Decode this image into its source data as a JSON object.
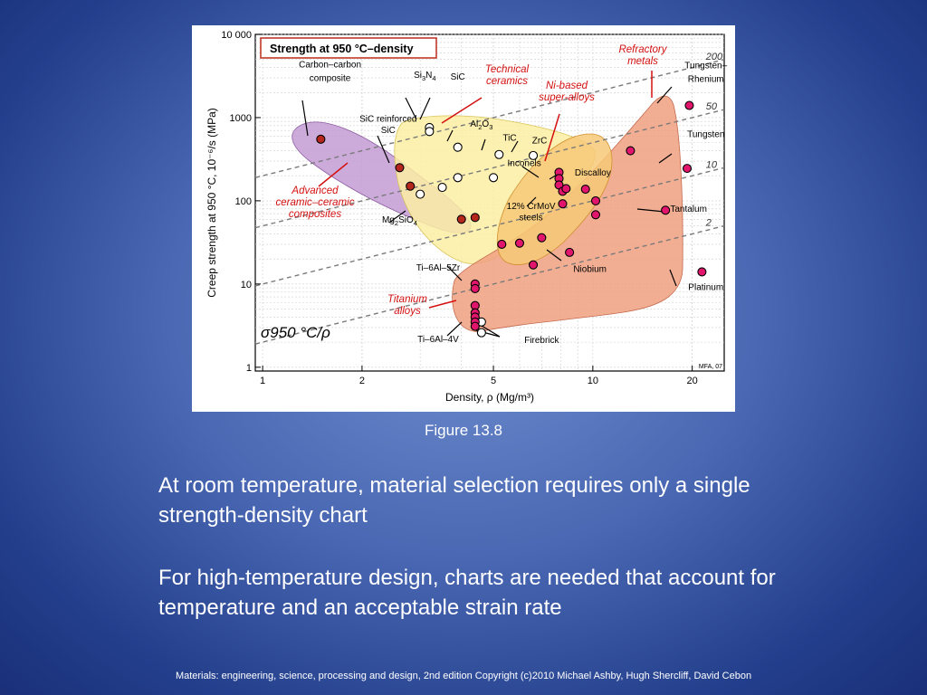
{
  "caption": "Figure 13.8",
  "paragraph1": "At room temperature, material selection requires only a single strength-density chart",
  "paragraph2": "For high-temperature design, charts are needed that account for temperature and an acceptable strain rate",
  "footer": "Materials: engineering, science, processing and design, 2nd edition Copyright (c)2010 Michael Ashby, Hugh Shercliff, David Cebon",
  "chart_data": {
    "type": "scatter",
    "title": "Strength at 950 °C–density",
    "xlabel": "Density, ρ (Mg/m³)",
    "ylabel": "Creep strength at 950 °C, 10⁻⁶/s  (MPa)",
    "x_scale": "log",
    "y_scale": "log",
    "xlim": [
      0.95,
      25
    ],
    "ylim": [
      0.9,
      10000
    ],
    "x_ticks": [
      1,
      2,
      5,
      10,
      20
    ],
    "x_tick_labels": [
      "1",
      "2",
      "5",
      "10",
      "20"
    ],
    "y_ticks": [
      1,
      10,
      100,
      1000,
      10000
    ],
    "y_tick_labels": [
      "1",
      "10",
      "100",
      "1000",
      "10 000"
    ],
    "grid": true,
    "colors": {
      "composite_bubble": "#c39bd3",
      "ceramic_bubble": "#fbeea3",
      "nickel_bubble": "#f7c978",
      "refractory_bubble": "#f0a080",
      "metal_point": "#e0156b",
      "composite_point": "#b5271d",
      "ceramic_point": "#ffffff",
      "class_label": "#d41010"
    },
    "guide_line_label": "σ950 °C/ρ",
    "guide_values": [
      {
        "label": "200",
        "c": 200
      },
      {
        "label": "50",
        "c": 50
      },
      {
        "label": "10",
        "c": 10
      },
      {
        "label": "2",
        "c": 2
      }
    ],
    "class_labels": {
      "refractory": "Refractory metals",
      "technical_ceramics": "Technical ceramics",
      "ni_alloys": "Ni-based super-alloys",
      "composites": "Advanced ceramic–ceramic composites",
      "titanium": "Titanium alloys"
    },
    "mark": "MFA, 07",
    "series": [
      {
        "name": "Technical ceramics",
        "style": "open",
        "points": [
          {
            "x": 3.2,
            "y": 760
          },
          {
            "x": 3.2,
            "y": 680
          },
          {
            "x": 3.9,
            "y": 440
          },
          {
            "x": 3.9,
            "y": 190
          },
          {
            "x": 5.0,
            "y": 190
          },
          {
            "x": 5.2,
            "y": 360
          },
          {
            "x": 6.6,
            "y": 350
          },
          {
            "x": 3.0,
            "y": 120
          },
          {
            "x": 3.5,
            "y": 145
          },
          {
            "x": 4.6,
            "y": 3.5
          },
          {
            "x": 4.6,
            "y": 2.6
          }
        ]
      },
      {
        "name": "Composites",
        "style": "dark",
        "points": [
          {
            "x": 1.5,
            "y": 550
          },
          {
            "x": 2.6,
            "y": 250
          },
          {
            "x": 2.8,
            "y": 150
          },
          {
            "x": 4.0,
            "y": 60
          },
          {
            "x": 4.4,
            "y": 63
          }
        ]
      },
      {
        "name": "Metals",
        "style": "filled",
        "points": [
          {
            "x": 4.4,
            "y": 10
          },
          {
            "x": 4.4,
            "y": 8.8
          },
          {
            "x": 4.4,
            "y": 5.5
          },
          {
            "x": 4.4,
            "y": 4.5
          },
          {
            "x": 4.4,
            "y": 4.0
          },
          {
            "x": 4.4,
            "y": 3.5
          },
          {
            "x": 4.4,
            "y": 3.1
          },
          {
            "x": 5.3,
            "y": 30
          },
          {
            "x": 6.0,
            "y": 31
          },
          {
            "x": 6.6,
            "y": 17
          },
          {
            "x": 7.0,
            "y": 36
          },
          {
            "x": 7.9,
            "y": 220
          },
          {
            "x": 7.9,
            "y": 185
          },
          {
            "x": 7.9,
            "y": 155
          },
          {
            "x": 8.1,
            "y": 130
          },
          {
            "x": 8.3,
            "y": 140
          },
          {
            "x": 8.1,
            "y": 92
          },
          {
            "x": 8.5,
            "y": 24
          },
          {
            "x": 9.5,
            "y": 138
          },
          {
            "x": 10.2,
            "y": 100
          },
          {
            "x": 10.2,
            "y": 68
          },
          {
            "x": 13.0,
            "y": 400
          },
          {
            "x": 16.6,
            "y": 77
          },
          {
            "x": 19.3,
            "y": 245
          },
          {
            "x": 19.6,
            "y": 1400
          },
          {
            "x": 21.4,
            "y": 14
          }
        ]
      }
    ],
    "labels": [
      {
        "text": "Carbon–carbon",
        "x": 1.6,
        "y": 4000
      },
      {
        "text": "composite",
        "x": 1.6,
        "y": 2750
      },
      {
        "text": "Si3N4",
        "x": 3.1,
        "y": 3000
      },
      {
        "text": "SiC",
        "x": 3.9,
        "y": 2850
      },
      {
        "text": "SiC reinforced",
        "x": 2.4,
        "y": 890
      },
      {
        "text": "SiC",
        "x": 2.4,
        "y": 650
      },
      {
        "text": "Al2O3",
        "x": 4.6,
        "y": 780
      },
      {
        "text": "TiC",
        "x": 5.6,
        "y": 530
      },
      {
        "text": "ZrC",
        "x": 6.9,
        "y": 490
      },
      {
        "text": "Inconels",
        "x": 6.2,
        "y": 260
      },
      {
        "text": "Discalloy",
        "x": 10.0,
        "y": 200
      },
      {
        "text": "12% CrMoV",
        "x": 6.5,
        "y": 80
      },
      {
        "text": "steels",
        "x": 6.5,
        "y": 58
      },
      {
        "text": "Mg2SiO4",
        "x": 2.6,
        "y": 55
      },
      {
        "text": "Tungsten–",
        "x": 22.0,
        "y": 3900
      },
      {
        "text": "Rhenium",
        "x": 22.0,
        "y": 2700
      },
      {
        "text": "Tungsten",
        "x": 22.0,
        "y": 580
      },
      {
        "text": "Tantalum",
        "x": 19.5,
        "y": 74
      },
      {
        "text": "Platinum",
        "x": 22.0,
        "y": 8.5
      },
      {
        "text": "Niobium",
        "x": 9.8,
        "y": 14
      },
      {
        "text": "Ti–6Al–5Zr",
        "x": 3.4,
        "y": 14.5
      },
      {
        "text": "Ti–6Al–4V",
        "x": 3.4,
        "y": 2.0
      },
      {
        "text": "Firebrick",
        "x": 7.0,
        "y": 1.95
      }
    ]
  }
}
